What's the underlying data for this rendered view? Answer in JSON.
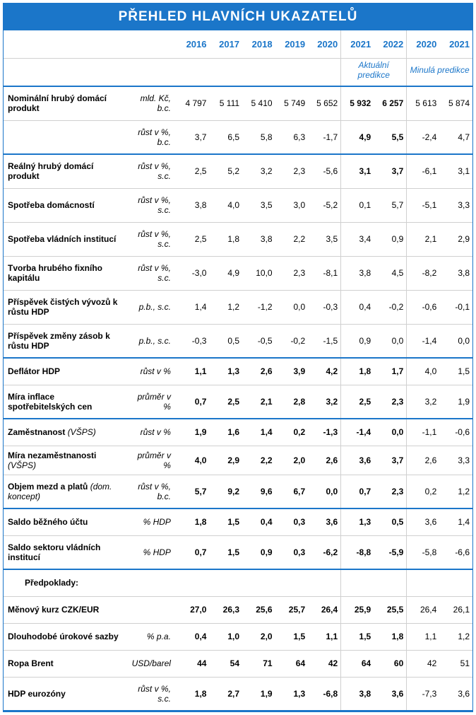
{
  "title": "PŘEHLED HLAVNÍCH UKAZATELŮ",
  "header": {
    "years": [
      "2016",
      "2017",
      "2018",
      "2019",
      "2020",
      "2021",
      "2022",
      "2020",
      "2021"
    ],
    "group1": "Aktuální predikce",
    "group2": "Minulá predikce"
  },
  "colors": {
    "primary": "#1b76c9",
    "border": "#d0d0d0",
    "text": "#000000",
    "bg": "#ffffff"
  },
  "rows": [
    {
      "label": "Nominální hrubý domácí produkt",
      "suffix": "",
      "unit": "mld. Kč, b.c.",
      "v": [
        "4 797",
        "5 111",
        "5 410",
        "5 749",
        "5 652",
        "5 932",
        "6 257",
        "5 613",
        "5 874"
      ],
      "bold": [
        5,
        6
      ],
      "sep": "light",
      "tall": true
    },
    {
      "label": "",
      "suffix": "",
      "unit": "růst v %, b.c.",
      "v": [
        "3,7",
        "6,5",
        "5,8",
        "6,3",
        "-1,7",
        "4,9",
        "5,5",
        "-2,4",
        "4,7"
      ],
      "bold": [
        5,
        6
      ],
      "sep": "heavy",
      "tall": true
    },
    {
      "label": "Reálný hrubý domácí produkt",
      "suffix": "",
      "unit": "růst v %, s.c.",
      "v": [
        "2,5",
        "5,2",
        "3,2",
        "2,3",
        "-5,6",
        "3,1",
        "3,7",
        "-6,1",
        "3,1"
      ],
      "bold": [
        5,
        6
      ],
      "sep": "light",
      "tall": true
    },
    {
      "label": "Spotřeba domácností",
      "suffix": "",
      "unit": "růst v %, s.c.",
      "v": [
        "3,8",
        "4,0",
        "3,5",
        "3,0",
        "-5,2",
        "0,1",
        "5,7",
        "-5,1",
        "3,3"
      ],
      "bold": [],
      "sep": "light",
      "tall": true
    },
    {
      "label": "Spotřeba vládních institucí",
      "suffix": "",
      "unit": "růst v %, s.c.",
      "v": [
        "2,5",
        "1,8",
        "3,8",
        "2,2",
        "3,5",
        "3,4",
        "0,9",
        "2,1",
        "2,9"
      ],
      "bold": [],
      "sep": "light",
      "tall": true
    },
    {
      "label": "Tvorba hrubého fixního kapitálu",
      "suffix": "",
      "unit": "růst v %, s.c.",
      "v": [
        "-3,0",
        "4,9",
        "10,0",
        "2,3",
        "-8,1",
        "3,8",
        "4,5",
        "-8,2",
        "3,8"
      ],
      "bold": [],
      "sep": "light",
      "tall": true
    },
    {
      "label": "Příspěvek čistých vývozů k růstu HDP",
      "suffix": "",
      "unit": "p.b., s.c.",
      "v": [
        "1,4",
        "1,2",
        "-1,2",
        "0,0",
        "-0,3",
        "0,4",
        "-0,2",
        "-0,6",
        "-0,1"
      ],
      "bold": [],
      "sep": "light",
      "tall": true
    },
    {
      "label": "Příspěvek změny zásob k růstu HDP",
      "suffix": "",
      "unit": "p.b., s.c.",
      "v": [
        "-0,3",
        "0,5",
        "-0,5",
        "-0,2",
        "-1,5",
        "0,9",
        "0,0",
        "-1,4",
        "0,0"
      ],
      "bold": [],
      "sep": "heavy",
      "tall": true
    },
    {
      "label": "Deflátor HDP",
      "suffix": "",
      "unit": "růst v %",
      "v": [
        "1,1",
        "1,3",
        "2,6",
        "3,9",
        "4,2",
        "1,8",
        "1,7",
        "4,0",
        "1,5"
      ],
      "bold": [
        0,
        1,
        2,
        3,
        4,
        5,
        6
      ],
      "sep": "light"
    },
    {
      "label": "Míra inflace spotřebitelských cen",
      "suffix": "",
      "unit": "průměr v %",
      "v": [
        "0,7",
        "2,5",
        "2,1",
        "2,8",
        "3,2",
        "2,5",
        "2,3",
        "3,2",
        "1,9"
      ],
      "bold": [
        0,
        1,
        2,
        3,
        4,
        5,
        6
      ],
      "sep": "heavy",
      "tall": true
    },
    {
      "label": "Zaměstnanost ",
      "suffix": "(VŠPS)",
      "unit": "růst v %",
      "v": [
        "1,9",
        "1,6",
        "1,4",
        "0,2",
        "-1,3",
        "-1,4",
        "0,0",
        "-1,1",
        "-0,6"
      ],
      "bold": [
        0,
        1,
        2,
        3,
        4,
        5,
        6
      ],
      "sep": "light"
    },
    {
      "label": "Míra nezaměstnanosti ",
      "suffix": "(VŠPS)",
      "unit": "průměr v %",
      "v": [
        "4,0",
        "2,9",
        "2,2",
        "2,0",
        "2,6",
        "3,6",
        "3,7",
        "2,6",
        "3,3"
      ],
      "bold": [
        0,
        1,
        2,
        3,
        4,
        5,
        6
      ],
      "sep": "light"
    },
    {
      "label": "Objem mezd a platů ",
      "suffix": "(dom. koncept)",
      "unit": "růst v %, b.c.",
      "v": [
        "5,7",
        "9,2",
        "9,6",
        "6,7",
        "0,0",
        "0,7",
        "2,3",
        "0,2",
        "1,2"
      ],
      "bold": [
        0,
        1,
        2,
        3,
        4,
        5,
        6
      ],
      "sep": "heavy",
      "tall": true
    },
    {
      "label": "Saldo běžného účtu",
      "suffix": "",
      "unit": "% HDP",
      "v": [
        "1,8",
        "1,5",
        "0,4",
        "0,3",
        "3,6",
        "1,3",
        "0,5",
        "3,6",
        "1,4"
      ],
      "bold": [
        0,
        1,
        2,
        3,
        4,
        5,
        6
      ],
      "sep": "light"
    },
    {
      "label": "Saldo sektoru vládních institucí",
      "suffix": "",
      "unit": "% HDP",
      "v": [
        "0,7",
        "1,5",
        "0,9",
        "0,3",
        "-6,2",
        "-8,8",
        "-5,9",
        "-5,8",
        "-6,6"
      ],
      "bold": [
        0,
        1,
        2,
        3,
        4,
        5,
        6
      ],
      "sep": "heavy",
      "tall": true
    },
    {
      "label": "Předpoklady:",
      "suffix": "",
      "unit": "",
      "v": [
        "",
        "",
        "",
        "",
        "",
        "",
        "",
        "",
        ""
      ],
      "bold": [],
      "sep": "light",
      "assump": true
    },
    {
      "label": "Měnový kurz CZK/EUR",
      "suffix": "",
      "unit": "",
      "v": [
        "27,0",
        "26,3",
        "25,6",
        "25,7",
        "26,4",
        "25,9",
        "25,5",
        "26,4",
        "26,1"
      ],
      "bold": [
        0,
        1,
        2,
        3,
        4,
        5,
        6
      ],
      "sep": "light"
    },
    {
      "label": "Dlouhodobé úrokové sazby",
      "suffix": "",
      "unit": "% p.a.",
      "v": [
        "0,4",
        "1,0",
        "2,0",
        "1,5",
        "1,1",
        "1,5",
        "1,8",
        "1,1",
        "1,2"
      ],
      "bold": [
        0,
        1,
        2,
        3,
        4,
        5,
        6
      ],
      "sep": "light"
    },
    {
      "label": "Ropa Brent",
      "suffix": "",
      "unit": "USD/barel",
      "v": [
        "44",
        "54",
        "71",
        "64",
        "42",
        "64",
        "60",
        "42",
        "51"
      ],
      "bold": [
        0,
        1,
        2,
        3,
        4,
        5,
        6
      ],
      "sep": "light"
    },
    {
      "label": "HDP eurozóny",
      "suffix": "",
      "unit": "růst v %, s.c.",
      "v": [
        "1,8",
        "2,7",
        "1,9",
        "1,3",
        "-6,8",
        "3,8",
        "3,6",
        "-7,3",
        "3,6"
      ],
      "bold": [
        0,
        1,
        2,
        3,
        4,
        5,
        6
      ],
      "sep": "heavy",
      "tall": true
    }
  ]
}
